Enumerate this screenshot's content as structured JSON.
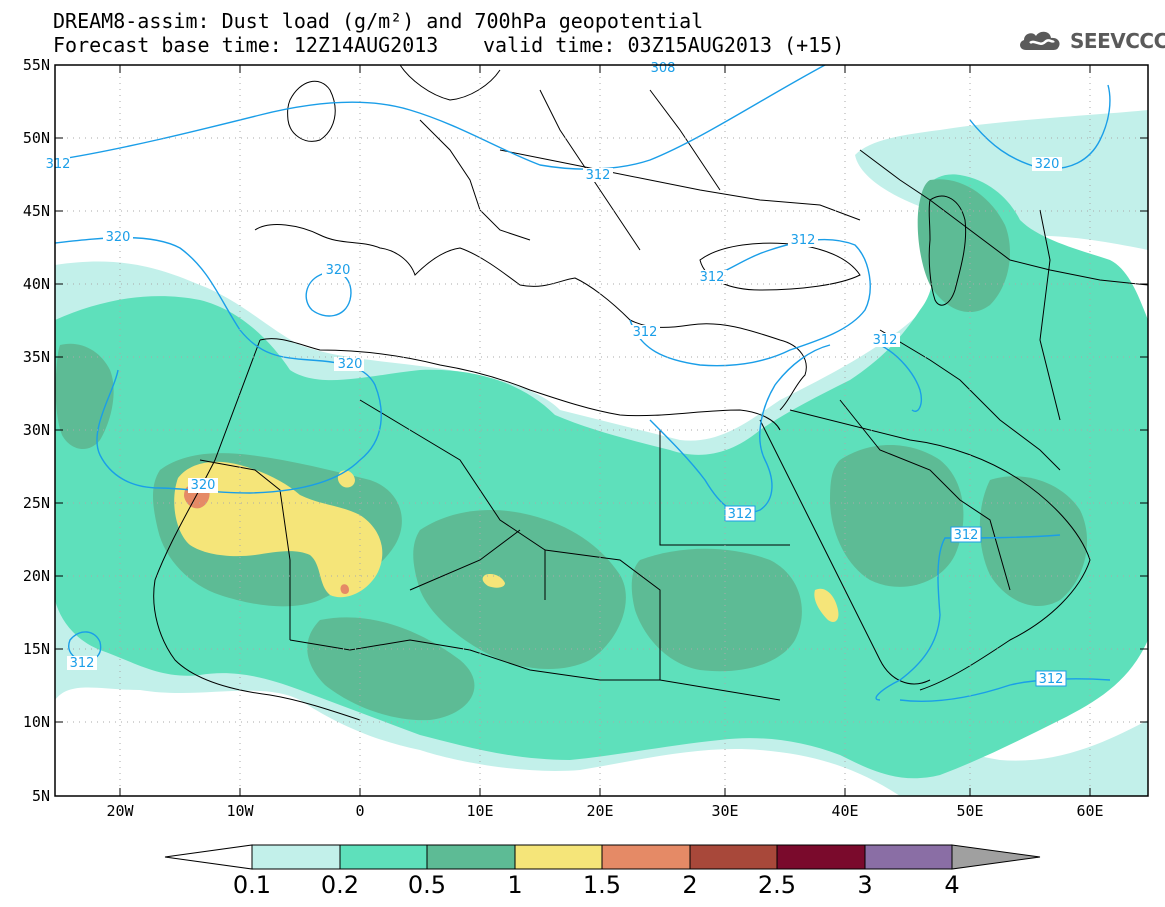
{
  "header": {
    "title_line1": "DREAM8-assim: Dust load (g/m²) and 700hPa geopotential",
    "base_time": "Forecast base time: 12Z14AUG2013",
    "valid_time": "valid time: 03Z15AUG2013 (+15)"
  },
  "logo": {
    "text": "SEEVCCC",
    "icon": "cloud-icon"
  },
  "map": {
    "lat_labels": [
      "55N",
      "50N",
      "45N",
      "40N",
      "35N",
      "30N",
      "25N",
      "20N",
      "15N",
      "10N",
      "5N"
    ],
    "lon_labels": [
      "20W",
      "10W",
      "0",
      "10E",
      "20E",
      "30E",
      "40E",
      "50E",
      "60E"
    ],
    "contour_labels": [
      "312",
      "320",
      "320",
      "320",
      "320",
      "312",
      "312",
      "312",
      "312",
      "312",
      "312",
      "320",
      "312",
      "312",
      "312",
      "308"
    ],
    "colors": {
      "c01": "#c2f0ea",
      "c02": "#5ee0bb",
      "c05": "#5dbb95",
      "c10": "#f5e579",
      "c15": "#e58a66",
      "contour": "#1a9ee8",
      "border": "#000000"
    }
  },
  "colorbar": {
    "labels": [
      "0.1",
      "0.2",
      "0.5",
      "1",
      "1.5",
      "2",
      "2.5",
      "3",
      "4"
    ],
    "colors": [
      "#c2f0ea",
      "#5ee0bb",
      "#5dbb95",
      "#f5e579",
      "#e58a66",
      "#a8483a",
      "#7a0a2c",
      "#8a6ea5"
    ],
    "low_color": "#ffffff",
    "high_color": "#a0a0a0"
  }
}
